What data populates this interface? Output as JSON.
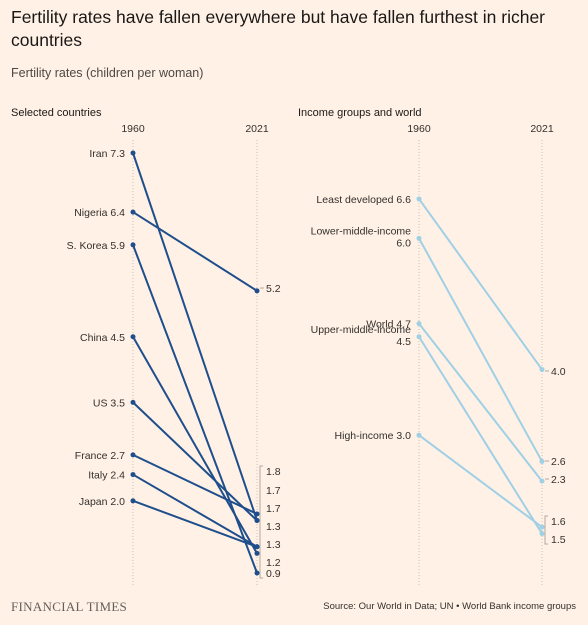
{
  "title": "Fertility rates have fallen everywhere but have fallen furthest in richer countries",
  "subtitle": "Fertility rates (children per woman)",
  "footer": {
    "logo": "FINANCIAL TIMES",
    "source": "Source: Our World in Data; UN • World Bank income groups"
  },
  "colors": {
    "countries": "#1f4e8c",
    "groups": "#9fd0e6",
    "background": "#fff1e5"
  },
  "chart_data": [
    {
      "type": "line",
      "title": "Selected countries",
      "x": [
        "1960",
        "2021"
      ],
      "series": [
        {
          "name": "Iran",
          "values": [
            7.3,
            1.7
          ],
          "label_1960": "Iran 7.3"
        },
        {
          "name": "Nigeria",
          "values": [
            6.4,
            5.2
          ],
          "label_1960": "Nigeria 6.4"
        },
        {
          "name": "S. Korea",
          "values": [
            5.9,
            0.9
          ],
          "label_1960": "S. Korea 5.9"
        },
        {
          "name": "China",
          "values": [
            4.5,
            1.2
          ],
          "label_1960": "China 4.5"
        },
        {
          "name": "US",
          "values": [
            3.5,
            1.7
          ],
          "label_1960": "US 3.5"
        },
        {
          "name": "France",
          "values": [
            2.7,
            1.8
          ],
          "label_1960": "France 2.7"
        },
        {
          "name": "Italy",
          "values": [
            2.4,
            1.3
          ],
          "label_1960": "Italy 2.4"
        },
        {
          "name": "Japan",
          "values": [
            2.0,
            1.3
          ],
          "label_1960": "Japan 2.0"
        }
      ],
      "end_labels": [
        {
          "text": "5.2",
          "value": 5.2
        },
        {
          "text": "1.8",
          "value": 1.8
        },
        {
          "text": "1.7",
          "value": 1.7
        },
        {
          "text": "1.7",
          "value": 1.7
        },
        {
          "text": "1.3",
          "value": 1.3
        },
        {
          "text": "1.3",
          "value": 1.3
        },
        {
          "text": "1.2",
          "value": 1.2
        },
        {
          "text": "0.9",
          "value": 0.9
        }
      ],
      "yrange": [
        0.9,
        7.3
      ]
    },
    {
      "type": "line",
      "title": "Income groups and world",
      "x": [
        "1960",
        "2021"
      ],
      "series": [
        {
          "name": "Least developed",
          "values": [
            6.6,
            4.0
          ],
          "label_1960": "Least developed 6.6"
        },
        {
          "name": "Lower-middle-income",
          "values": [
            6.0,
            2.6
          ],
          "label_1960": "Lower-middle-income 6.0"
        },
        {
          "name": "World",
          "values": [
            4.7,
            2.3
          ],
          "label_1960": "World 4.7"
        },
        {
          "name": "Upper-middle-income",
          "values": [
            4.5,
            1.5
          ],
          "label_1960": "Upper-middle-income 4.5"
        },
        {
          "name": "High-income",
          "values": [
            3.0,
            1.6
          ],
          "label_1960": "High-income 3.0"
        }
      ],
      "end_labels": [
        {
          "text": "4.0",
          "value": 4.0
        },
        {
          "text": "2.6",
          "value": 2.6
        },
        {
          "text": "2.3",
          "value": 2.3
        },
        {
          "text": "1.6",
          "value": 1.6
        },
        {
          "text": "1.5",
          "value": 1.5
        }
      ],
      "yrange": [
        0.9,
        7.3
      ]
    }
  ]
}
